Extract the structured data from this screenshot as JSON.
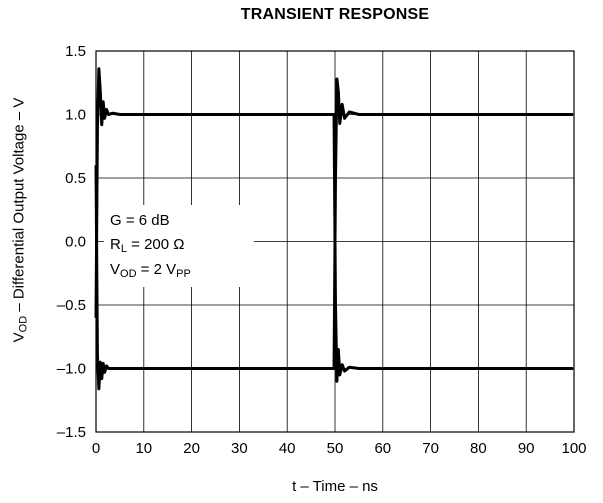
{
  "chart_data": {
    "type": "line",
    "title": "TRANSIENT RESPONSE",
    "xlabel": "t – Time – ns",
    "ylabel": {
      "pre": "V",
      "sub": "OD",
      "post": " – Differential Output Voltage – V"
    },
    "xlim": [
      0,
      100
    ],
    "ylim": [
      -1.5,
      1.5
    ],
    "xticks": [
      "0",
      "10",
      "20",
      "30",
      "40",
      "50",
      "60",
      "70",
      "80",
      "90",
      "100"
    ],
    "yticks": [
      "1.5",
      "1.0",
      "0.5",
      "0.0",
      "–0.5",
      "–1.0",
      "–1.5"
    ],
    "grid": true,
    "annotation": {
      "line1": "G = 6 dB",
      "line2": {
        "pre": "R",
        "sub": "L",
        "post": " = 200 Ω"
      },
      "line3": {
        "pre": "V",
        "sub1": "OD",
        "mid": " = 2 V",
        "sub2": "PP"
      }
    },
    "series": [
      {
        "points": [
          [
            0,
            -0.6
          ],
          [
            0.3,
            0.9
          ],
          [
            0.6,
            1.36
          ],
          [
            0.9,
            1.18
          ],
          [
            1.2,
            0.92
          ],
          [
            1.5,
            1.1
          ],
          [
            1.8,
            0.97
          ],
          [
            2.2,
            1.04
          ],
          [
            2.6,
            1.0
          ],
          [
            3.5,
            1.01
          ],
          [
            5,
            1.0
          ],
          [
            10,
            1.0
          ],
          [
            20,
            1.0
          ],
          [
            30,
            1.0
          ],
          [
            40,
            1.0
          ],
          [
            49.8,
            1.0
          ],
          [
            50.1,
            -0.5
          ],
          [
            50.4,
            -1.1
          ],
          [
            50.7,
            -0.85
          ],
          [
            51.0,
            -1.05
          ],
          [
            51.5,
            -0.97
          ],
          [
            52,
            -1.02
          ],
          [
            53,
            -0.99
          ],
          [
            55,
            -1.0
          ],
          [
            60,
            -1.0
          ],
          [
            70,
            -1.0
          ],
          [
            80,
            -1.0
          ],
          [
            90,
            -1.0
          ],
          [
            99.8,
            -1.0
          ]
        ]
      },
      {
        "points": [
          [
            0,
            0.6
          ],
          [
            0.3,
            -0.9
          ],
          [
            0.6,
            -1.16
          ],
          [
            0.9,
            -0.95
          ],
          [
            1.2,
            -1.08
          ],
          [
            1.5,
            -0.96
          ],
          [
            1.8,
            -1.03
          ],
          [
            2.2,
            -0.98
          ],
          [
            2.6,
            -1.0
          ],
          [
            5,
            -1.0
          ],
          [
            10,
            -1.0
          ],
          [
            20,
            -1.0
          ],
          [
            30,
            -1.0
          ],
          [
            40,
            -1.0
          ],
          [
            49.8,
            -1.0
          ],
          [
            50.1,
            0.5
          ],
          [
            50.4,
            1.28
          ],
          [
            50.7,
            1.18
          ],
          [
            51.0,
            0.93
          ],
          [
            51.5,
            1.08
          ],
          [
            52,
            0.97
          ],
          [
            53,
            1.02
          ],
          [
            55,
            1.0
          ],
          [
            60,
            1.0
          ],
          [
            70,
            1.0
          ],
          [
            80,
            1.0
          ],
          [
            90,
            1.0
          ],
          [
            99.8,
            1.0
          ]
        ]
      }
    ]
  }
}
